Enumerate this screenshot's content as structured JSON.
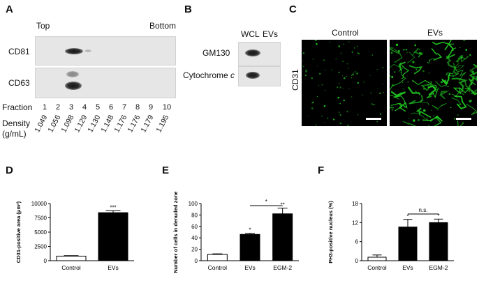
{
  "panels": {
    "A": {
      "letter": "A",
      "top_label": "Top",
      "bottom_label": "Bottom",
      "blots": [
        "CD81",
        "CD63"
      ],
      "fraction_label": "Fraction",
      "fractions": [
        "1",
        "2",
        "3",
        "4",
        "5",
        "6",
        "7",
        "8",
        "9",
        "10"
      ],
      "density_label_1": "Density",
      "density_label_2": "(g/mL)",
      "densities": [
        "1.049",
        "1.056",
        "1.098",
        "1.129",
        "1.130",
        "1.148",
        "1.176",
        "1.176",
        "1.179",
        "1.195"
      ]
    },
    "B": {
      "letter": "B",
      "col1": "WCL",
      "col2": "EVs",
      "row1": "GM130",
      "row2_main": "Cytochrome ",
      "row2_italic": "c"
    },
    "C": {
      "letter": "C",
      "col1": "Control",
      "col2": "EVs",
      "row": "CD31",
      "fluorescence_color": "#22cc22"
    },
    "D": {
      "letter": "D"
    },
    "E": {
      "letter": "E"
    },
    "F": {
      "letter": "F"
    }
  },
  "chart_data": [
    {
      "type": "bar",
      "ylabel": "CD31-positive area (μm²)",
      "categories": [
        "Control",
        "EVs"
      ],
      "values": [
        800,
        8400
      ],
      "errors": [
        80,
        350
      ],
      "significance": [
        "",
        "***"
      ],
      "ylim": [
        0,
        10000
      ],
      "yticks": [
        "0",
        "2500",
        "5000",
        "7500",
        "10000"
      ],
      "bar_colors": [
        "#ffffff",
        "#000000"
      ]
    },
    {
      "type": "bar",
      "ylabel": "Number of cells in denuded zone",
      "categories": [
        "Control",
        "EVs",
        "EGM-2"
      ],
      "values": [
        11,
        46,
        82
      ],
      "errors": [
        1,
        2,
        10
      ],
      "significance": [
        "",
        "*",
        "**"
      ],
      "bracket": {
        "from": 1,
        "to": 2,
        "label": "*"
      },
      "ylim": [
        0,
        100
      ],
      "yticks": [
        "0",
        "20",
        "40",
        "60",
        "80",
        "100"
      ],
      "bar_colors": [
        "#ffffff",
        "#000000",
        "#000000"
      ]
    },
    {
      "type": "bar",
      "ylabel": "PH3-positive nucleus (%)",
      "categories": [
        "Control",
        "EVs",
        "EGM-2"
      ],
      "values": [
        1.1,
        10.6,
        12.0
      ],
      "errors": [
        0.7,
        2.4,
        1.1
      ],
      "significance": [
        "",
        "*",
        "*"
      ],
      "bracket": {
        "from": 1,
        "to": 2,
        "label": "n.s."
      },
      "ylim": [
        0,
        18
      ],
      "yticks": [
        "0",
        "6",
        "12",
        "18"
      ],
      "bar_colors": [
        "#ffffff",
        "#000000",
        "#000000"
      ]
    }
  ]
}
